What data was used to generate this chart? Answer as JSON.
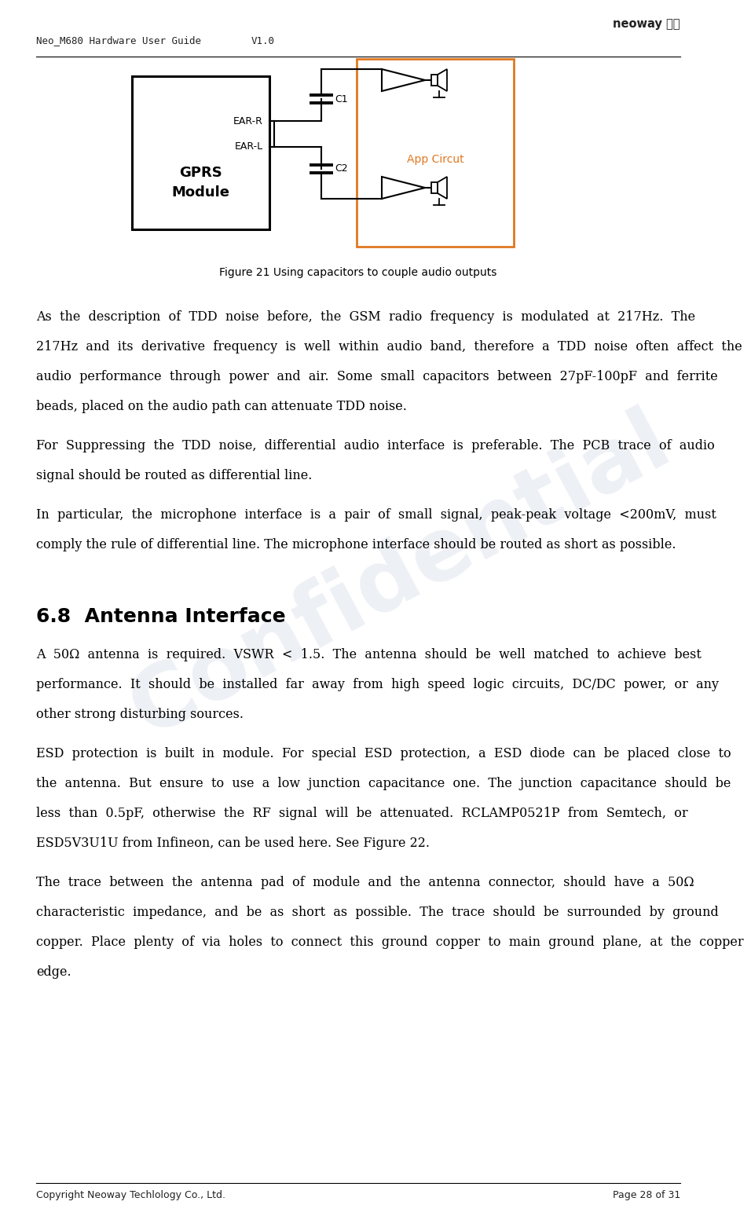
{
  "header_left": "Neo_M680 Hardware User Guide",
  "header_center": "V1.0",
  "footer_left": "Copyright Neoway Techlology Co., Ltd.",
  "footer_right": "Page 28 of 31",
  "figure_caption": "Figure 21 Using capacitors to couple audio outputs",
  "section_heading": "6.8  Antenna Interface",
  "para1_lines": [
    "As  the  description  of  TDD  noise  before,  the  GSM  radio  frequency  is  modulated  at  217Hz.  The",
    "217Hz  and  its  derivative  frequency  is  well  within  audio  band,  therefore  a  TDD  noise  often  affect  the",
    "audio  performance  through  power  and  air.  Some  small  capacitors  between  27pF-100pF  and  ferrite",
    "beads, placed on the audio path can attenuate TDD noise."
  ],
  "para2_lines": [
    "For  Suppressing  the  TDD  noise,  differential  audio  interface  is  preferable.  The  PCB  trace  of  audio",
    "signal should be routed as differential line."
  ],
  "para3_lines": [
    "In  particular,  the  microphone  interface  is  a  pair  of  small  signal,  peak-peak  voltage  <200mV,  must",
    "comply the rule of differential line. The microphone interface should be routed as short as possible."
  ],
  "para4_lines": [
    "A  50Ω  antenna  is  required.  VSWR  <  1.5.  The  antenna  should  be  well  matched  to  achieve  best",
    "performance.  It  should  be  installed  far  away  from  high  speed  logic  circuits,  DC/DC  power,  or  any",
    "other strong disturbing sources."
  ],
  "para5_lines": [
    "ESD  protection  is  built  in  module.  For  special  ESD  protection,  a  ESD  diode  can  be  placed  close  to",
    "the  antenna.  But  ensure  to  use  a  low  junction  capacitance  one.  The  junction  capacitance  should  be",
    "less  than  0.5pF,  otherwise  the  RF  signal  will  be  attenuated.  RCLAMP0521P  from  Semtech,  or",
    "ESD5V3U1U from Infineon, can be used here. See Figure 22."
  ],
  "para6_lines": [
    "The  trace  between  the  antenna  pad  of  module  and  the  antenna  connector,  should  have  a  50Ω",
    "characteristic  impedance,  and  be  as  short  as  possible.  The  trace  should  be  surrounded  by  ground",
    "copper.  Place  plenty  of  via  holes  to  connect  this  ground  copper  to  main  ground  plane,  at  the  copper",
    "edge."
  ],
  "bg_color": "#ffffff",
  "text_color": "#000000",
  "orange_color": "#e07820",
  "header_font_size": 9,
  "body_font_size": 11.5,
  "section_font_size": 18,
  "caption_font_size": 10,
  "footer_font_size": 9,
  "watermark_text": "Confidential",
  "watermark_color": "#b0bcd0",
  "watermark_alpha": 0.22
}
